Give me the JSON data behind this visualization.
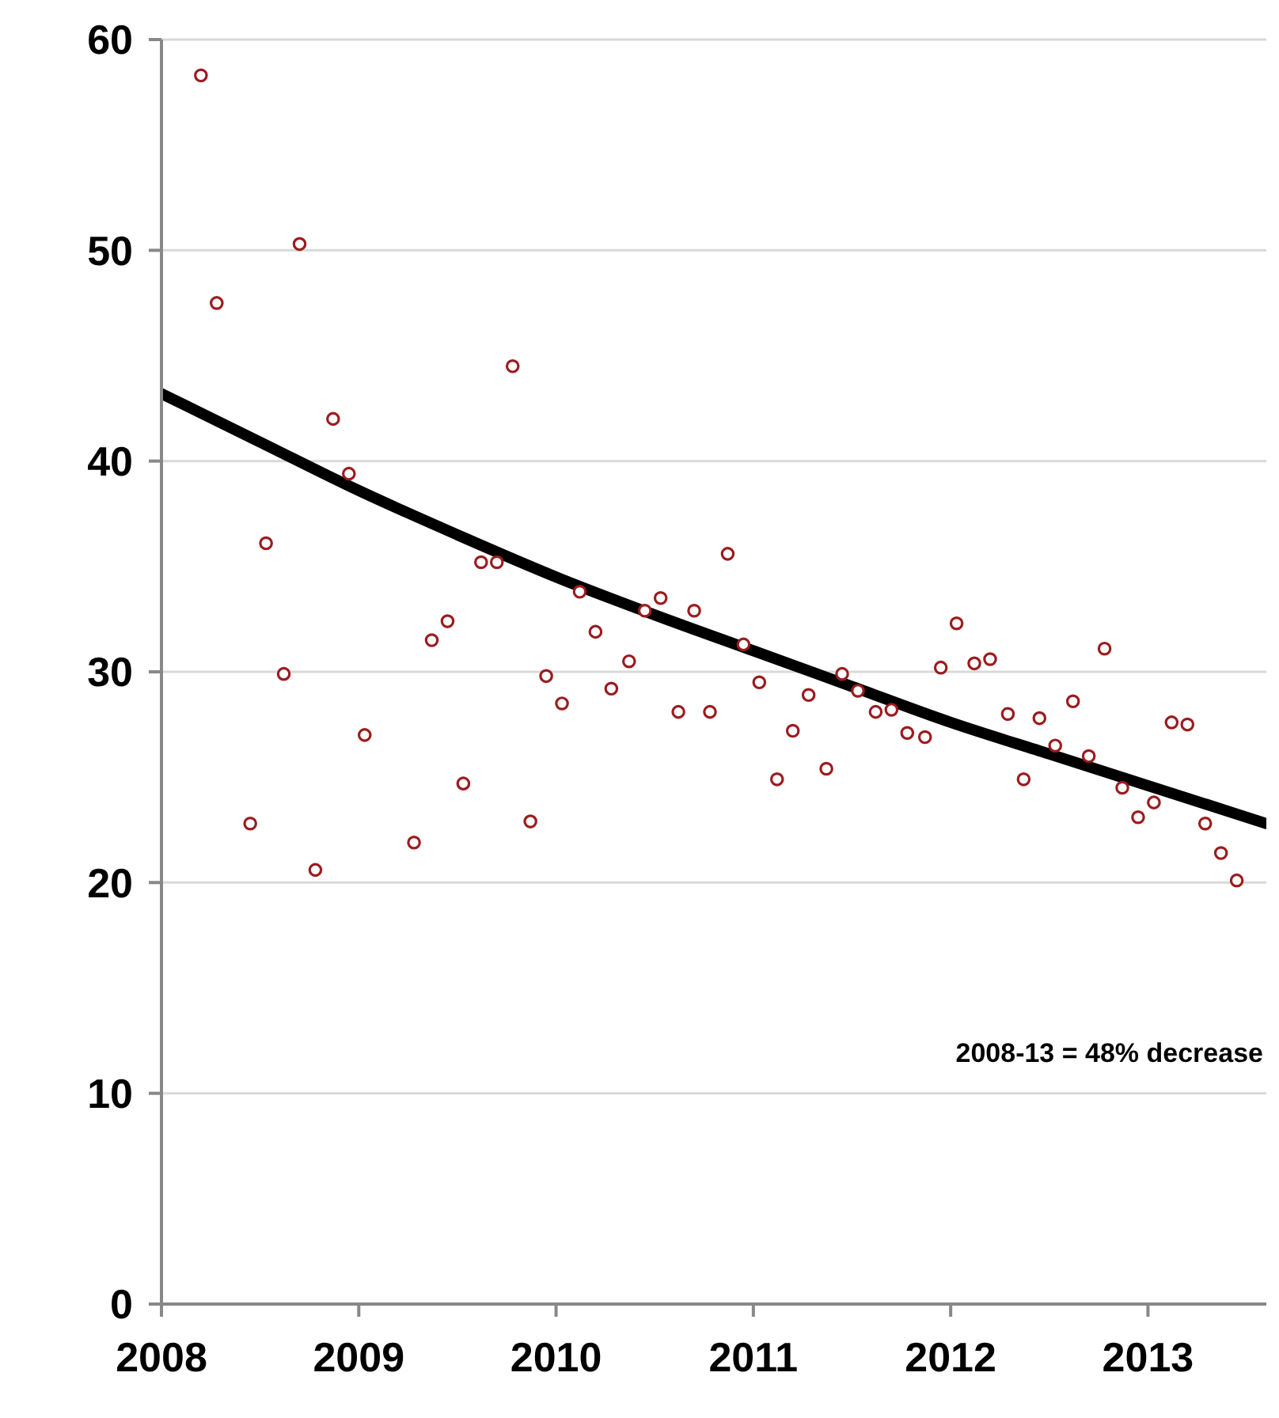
{
  "chart_data": {
    "type": "scatter",
    "xlim": [
      2008,
      2013.6
    ],
    "xticks": [
      2008,
      2009,
      2010,
      2011,
      2012,
      2013
    ],
    "ylim": [
      0,
      60
    ],
    "yticks": [
      0,
      10,
      20,
      30,
      40,
      50,
      60
    ],
    "grid": "y",
    "annotations": [
      "2008-13 = 48% decrease"
    ],
    "series": [
      {
        "color": "#9b1c1f",
        "marker": "circle",
        "x": [
          2008.2,
          2008.28,
          2008.45,
          2008.53,
          2008.62,
          2008.7,
          2008.78,
          2008.87,
          2008.95,
          2009.03,
          2009.28,
          2009.37,
          2009.45,
          2009.53,
          2009.62,
          2009.7,
          2009.78,
          2009.87,
          2009.95,
          2010.03,
          2010.12,
          2010.2,
          2010.28,
          2010.37,
          2010.45,
          2010.53,
          2010.62,
          2010.7,
          2010.78,
          2010.87,
          2010.95,
          2011.03,
          2011.12,
          2011.2,
          2011.28,
          2011.37,
          2011.45,
          2011.53,
          2011.62,
          2011.7,
          2011.78,
          2011.87,
          2011.95,
          2012.03,
          2012.12,
          2012.2,
          2012.29,
          2012.37,
          2012.45,
          2012.53,
          2012.62,
          2012.7,
          2012.78,
          2012.87,
          2012.95,
          2013.03,
          2013.12,
          2013.2,
          2013.29,
          2013.37,
          2013.45
        ],
        "values": [
          58.3,
          47.5,
          22.8,
          36.1,
          29.9,
          50.3,
          20.6,
          42.0,
          39.4,
          27.0,
          21.9,
          31.5,
          32.4,
          24.7,
          35.2,
          35.2,
          44.5,
          22.9,
          29.8,
          28.5,
          33.8,
          31.9,
          29.2,
          30.5,
          32.9,
          33.5,
          28.1,
          32.9,
          28.1,
          35.6,
          31.3,
          29.5,
          24.9,
          27.2,
          28.9,
          25.4,
          29.9,
          29.1,
          28.1,
          28.2,
          27.1,
          26.9,
          30.2,
          32.3,
          30.4,
          30.6,
          28.0,
          24.9,
          27.8,
          26.5,
          28.6,
          26.0,
          31.1,
          24.5,
          23.1,
          23.8,
          27.6,
          27.5,
          22.8,
          21.4,
          20.1
        ]
      },
      {
        "type": "line",
        "color": "#000000",
        "marker": "none",
        "line_style": "solid",
        "x": [
          2008.0,
          2008.5,
          2009.0,
          2009.5,
          2010.0,
          2010.5,
          2011.0,
          2011.5,
          2012.0,
          2012.5,
          2013.0,
          2013.6
        ],
        "values": [
          43.2,
          40.9,
          38.6,
          36.5,
          34.5,
          32.7,
          31.0,
          29.3,
          27.6,
          26.1,
          24.6,
          22.8
        ]
      }
    ]
  }
}
